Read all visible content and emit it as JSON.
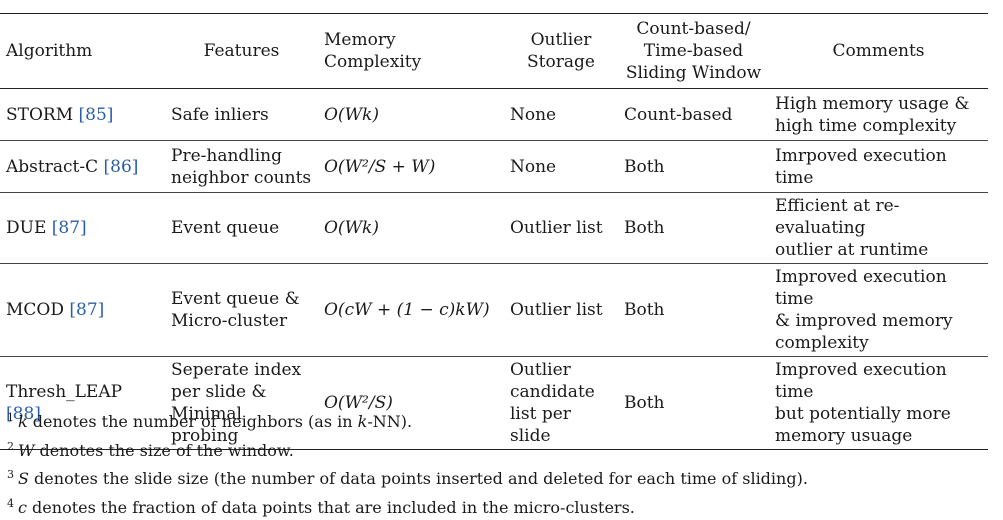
{
  "headers": {
    "algorithm": "Algorithm",
    "features": "Features",
    "memory": "Memory Complexity",
    "storage": [
      "Outlier",
      "Storage"
    ],
    "window": [
      "Count-based/",
      "Time-based",
      "Sliding Window"
    ],
    "comments": "Comments"
  },
  "rows": [
    {
      "algorithm": "STORM",
      "ref": "[85]",
      "features": [
        "Safe inliers"
      ],
      "memory": "O(Wk)",
      "storage": [
        "None"
      ],
      "window": "Count-based",
      "comments": [
        "High memory usage &",
        "high time complexity"
      ]
    },
    {
      "algorithm": "Abstract-C",
      "ref": "[86]",
      "features": [
        "Pre-handling",
        "neighbor counts"
      ],
      "memory": "O(W²/S + W)",
      "storage": [
        "None"
      ],
      "window": "Both",
      "comments": [
        "Imrpoved execution time"
      ]
    },
    {
      "algorithm": "DUE",
      "ref": "[87]",
      "features": [
        "Event queue"
      ],
      "memory": "O(Wk)",
      "storage": [
        "Outlier list"
      ],
      "window": "Both",
      "comments": [
        "Efficient at re-evaluating",
        "outlier at runtime"
      ]
    },
    {
      "algorithm": "MCOD",
      "ref": "[87]",
      "features": [
        "Event queue &",
        "Micro-cluster"
      ],
      "memory": "O(cW + (1 − c)kW)",
      "storage": [
        "Outlier list"
      ],
      "window": "Both",
      "comments": [
        "Improved execution time",
        "& improved memory",
        "complexity"
      ]
    },
    {
      "algorithm": "Thresh_LEAP",
      "ref": "[88]",
      "features": [
        "Seperate index",
        "per slide &",
        "Minimal probing"
      ],
      "memory": "O(W²/S)",
      "storage": [
        "Outlier",
        "candidate",
        "list per slide"
      ],
      "window": "Both",
      "comments": [
        "Improved execution time",
        "but potentially more",
        "memory usuage"
      ]
    }
  ],
  "notes": [
    {
      "num": "1",
      "sym": "k",
      "text": " denotes the number of neighbors (as in ",
      "sym2": "k",
      "text2": "-NN)."
    },
    {
      "num": "2",
      "sym": "W",
      "text": " denotes the size of the window.",
      "sym2": "",
      "text2": ""
    },
    {
      "num": "3",
      "sym": "S",
      "text": " denotes the slide size (the number of data points inserted and deleted for each time of sliding).",
      "sym2": "",
      "text2": ""
    },
    {
      "num": "4",
      "sym": "c",
      "text": " denotes the fraction of data points that are included in the micro-clusters.",
      "sym2": "",
      "text2": ""
    }
  ]
}
